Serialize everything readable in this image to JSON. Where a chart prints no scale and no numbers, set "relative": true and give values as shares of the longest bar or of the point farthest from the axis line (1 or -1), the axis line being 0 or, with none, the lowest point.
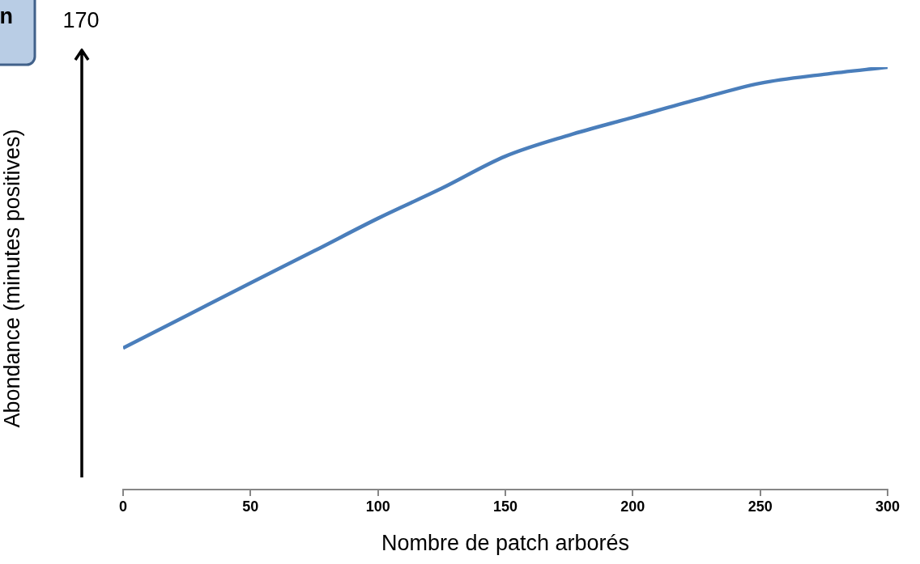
{
  "chart_data": {
    "type": "line",
    "xlabel": "Nombre de patch arborés",
    "ylabel": "Abondance (minutes positives)",
    "relative": true,
    "x": [
      0,
      25,
      50,
      75,
      100,
      125,
      150,
      175,
      200,
      225,
      250,
      275,
      300
    ],
    "series": [
      {
        "color": "#4a7ebb",
        "values": [
          0.335,
          0.412,
          0.489,
          0.565,
          0.642,
          0.713,
          0.789,
          0.839,
          0.881,
          0.923,
          0.962,
          0.983,
          1
        ]
      }
    ],
    "xlim": [
      0,
      300
    ],
    "xticks": [
      0,
      50,
      100,
      150,
      200,
      250,
      300
    ],
    "grid": false,
    "legend": false,
    "marker": "none",
    "line_style": "solid",
    "annotations": [
      "170",
      "n"
    ]
  }
}
